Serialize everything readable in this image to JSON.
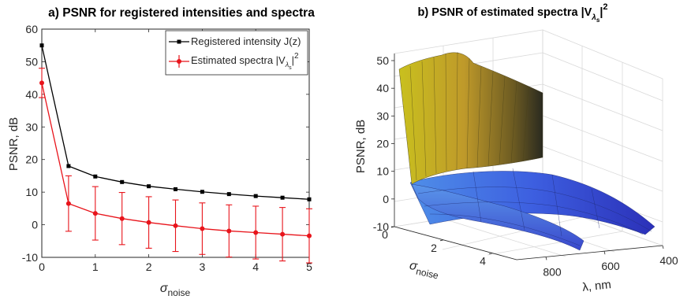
{
  "chart_data": [
    {
      "type": "line",
      "title": "a) PSNR for registered intensities and spectra",
      "xlabel": "σ",
      "xlabel_sub": "noise",
      "ylabel": "PSNR, dB",
      "xlim": [
        0,
        5
      ],
      "ylim": [
        -10,
        60
      ],
      "xticks": [
        "0",
        "1",
        "2",
        "3",
        "4",
        "5"
      ],
      "yticks": [
        "-10",
        "0",
        "10",
        "20",
        "30",
        "40",
        "50",
        "60"
      ],
      "legend_position": "top-right",
      "x": [
        0,
        0.5,
        1,
        1.5,
        2,
        2.5,
        3,
        3.5,
        4,
        4.5,
        5
      ],
      "series": [
        {
          "name": "Registered intensity J(z)",
          "color": "#000000",
          "marker": "square",
          "values": [
            55,
            18,
            14.8,
            13.1,
            11.8,
            10.9,
            10.1,
            9.4,
            8.8,
            8.3,
            7.8
          ]
        },
        {
          "name": "Estimated spectra |V",
          "name_sub": "λ",
          "name_subsub": "s",
          "name_tail": "|",
          "name_sup": "2",
          "color": "#e8141b",
          "marker": "dot",
          "values": [
            43.5,
            6.5,
            3.5,
            1.9,
            0.7,
            -0.3,
            -1.2,
            -1.9,
            -2.4,
            -2.9,
            -3.4
          ],
          "errors": [
            4.5,
            8.5,
            8.2,
            8.0,
            7.9,
            7.9,
            7.9,
            8.0,
            8.1,
            8.2,
            8.3
          ]
        }
      ]
    },
    {
      "type": "surface",
      "title": "b) PSNR of estimated spectra |V",
      "title_sub": "λ",
      "title_subsub": "s",
      "title_tail": "|",
      "title_sup": "2",
      "xlabel": "σ",
      "xlabel_sub": "noise",
      "ylabel": "λ, nm",
      "zlabel": "PSNR, dB",
      "xlim": [
        0,
        5
      ],
      "ylim": [
        400,
        900
      ],
      "zlim": [
        -10,
        55
      ],
      "xticks": [
        "0",
        "2",
        "4"
      ],
      "yticks": [
        "800",
        "600",
        "400"
      ],
      "zticks": [
        "-10",
        "0",
        "10",
        "20",
        "30",
        "40",
        "50"
      ],
      "colormap": [
        "#3a3fd0",
        "#3b6fe6",
        "#5aa0e0",
        "#b8c030",
        "#d6c81a"
      ],
      "approx_surface": {
        "sigma": [
          0,
          0.5,
          1,
          2,
          3,
          4,
          5
        ],
        "psnr_mean": [
          46,
          7,
          4,
          1,
          -1,
          -2.5,
          -3.5
        ]
      }
    }
  ]
}
